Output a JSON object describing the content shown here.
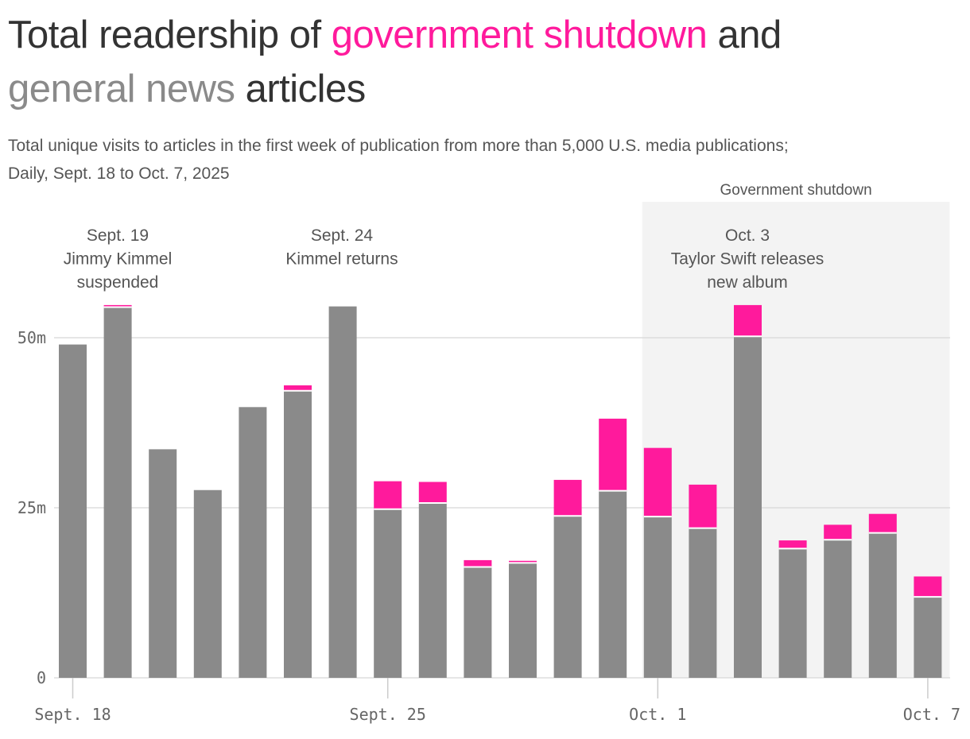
{
  "title": {
    "part1": "Total readership of ",
    "highlight1": "government shutdown",
    "part2": " and ",
    "highlight2": "general news",
    "part3": " articles"
  },
  "subtitle": {
    "line1": "Total unique visits to articles in the first week of publication from more than 5,000 U.S. media publications;",
    "line2": "Daily, Sept. 18 to Oct. 7, 2025"
  },
  "colors": {
    "shutdown": "#ff1a9c",
    "general": "#8a8a8a",
    "shade": "#f3f3f3",
    "grid": "#dddddd",
    "text": "#333333"
  },
  "chart_data": {
    "type": "bar",
    "stacked": true,
    "categories": [
      "Sept. 18",
      "Sept. 19",
      "Sept. 20",
      "Sept. 21",
      "Sept. 22",
      "Sept. 23",
      "Sept. 24",
      "Sept. 25",
      "Sept. 26",
      "Sept. 27",
      "Sept. 28",
      "Sept. 29",
      "Sept. 30",
      "Oct. 1",
      "Oct. 2",
      "Oct. 3",
      "Oct. 4",
      "Oct. 5",
      "Oct. 6",
      "Oct. 7"
    ],
    "series": [
      {
        "name": "general news",
        "values": [
          49.0,
          54.5,
          33.6,
          27.6,
          39.8,
          42.2,
          54.6,
          24.8,
          25.7,
          16.3,
          16.9,
          23.8,
          27.5,
          23.7,
          22.0,
          50.2,
          19.0,
          20.3,
          21.3,
          11.9
        ]
      },
      {
        "name": "government shutdown",
        "values": [
          0.0,
          0.3,
          0.0,
          0.0,
          0.0,
          0.8,
          0.0,
          4.1,
          3.1,
          1.0,
          0.3,
          5.3,
          10.6,
          10.1,
          6.4,
          4.6,
          1.2,
          2.2,
          2.8,
          3.0
        ]
      }
    ],
    "x_ticks": [
      {
        "label": "Sept. 18",
        "index": 0
      },
      {
        "label": "Sept. 25",
        "index": 7
      },
      {
        "label": "Oct. 1",
        "index": 13
      },
      {
        "label": "Oct. 7",
        "index": 19
      }
    ],
    "y_ticks": [
      {
        "label": "0",
        "value": 0
      },
      {
        "label": "25m",
        "value": 25
      },
      {
        "label": "50m",
        "value": 50
      }
    ],
    "ylim": [
      0,
      50
    ],
    "xlabel": "",
    "ylabel": "",
    "shaded_region": {
      "label": "Government shutdown",
      "start_index": 13,
      "end_index": 19
    },
    "annotations": [
      {
        "index": 1,
        "lines": [
          "Sept. 19",
          "Jimmy Kimmel",
          "suspended"
        ]
      },
      {
        "index": 6,
        "lines": [
          "Sept. 24",
          "Kimmel returns"
        ]
      },
      {
        "index": 15,
        "lines": [
          "Oct. 3",
          "Taylor Swift releases",
          "new album"
        ]
      }
    ],
    "grid": true,
    "legend": "none"
  }
}
